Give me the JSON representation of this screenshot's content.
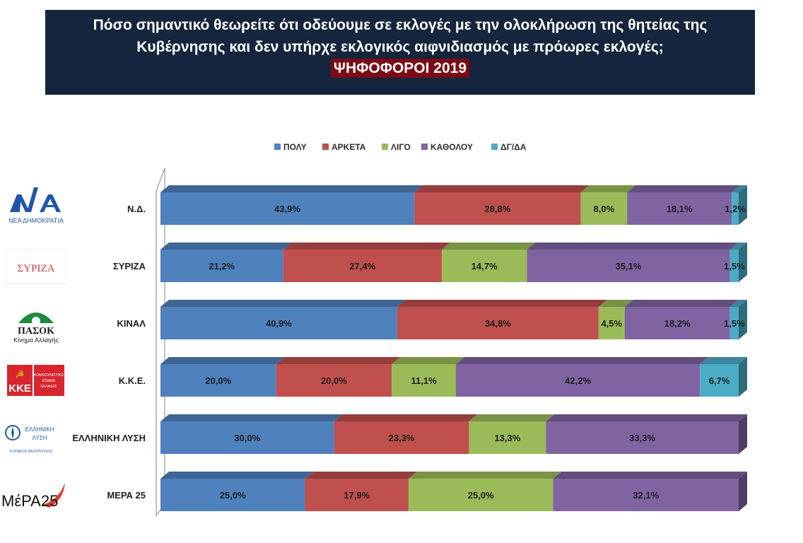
{
  "title": {
    "line1": "Πόσο σημαντικό θεωρείτε ότι οδεύουμε σε εκλογές με την ολοκλήρωση της θητείας της",
    "line2": "Κυβέρνησης και δεν υπήρχε εκλογικός αιφνιδιασμός με πρόωρες εκλογές;",
    "subtitle": "ΨΗΦΟΦΟΡΟΙ 2019"
  },
  "logos": [
    {
      "name": "nd-logo",
      "text": "ΝΕΑ ΔΗΜΟΚΡΑΤΙΑ"
    },
    {
      "name": "syriza-logo",
      "text": "ΣΥΡΙΖΑ"
    },
    {
      "name": "pasok-logo",
      "text": "ΠΑΣΟΚ",
      "subtext": "Κίνημα Αλλαγής"
    },
    {
      "name": "kke-logo",
      "text": "ΚΚΕ",
      "subtext": "ΚΟΜΜΟΥΝΙΣΤΙΚΟ ΚΟΜΜΑ ΕΛΛΑΔΑΣ"
    },
    {
      "name": "elliniki-lysi-logo",
      "text": "ΕΛΛΗΝΙΚΗ ΛΥΣΗ",
      "subtext": "ΚΥΡΙΑΚΟΣ ΒΕΛΟΠΟΥΛΟΣ"
    },
    {
      "name": "mera25-logo",
      "text": "ΜέΡΑ25"
    }
  ],
  "colors": {
    "title_bg": "#14253d",
    "subtitle_bg": "#7b0a14",
    "series": [
      "#4f81bd",
      "#c0504d",
      "#9bbb59",
      "#8064a2",
      "#4bacc6"
    ]
  },
  "chart_data": {
    "type": "bar",
    "orientation": "horizontal",
    "stacked": true,
    "percent_stacked": true,
    "legend_position": "top",
    "categories": [
      "Ν.Δ.",
      "ΣΥΡΙΖΑ",
      "ΚΙΝΑΛ",
      "Κ.Κ.Ε.",
      "ΕΛΛΗΝΙΚΗ ΛΥΣΗ",
      "ΜΕΡΑ 25"
    ],
    "series": [
      {
        "name": "ΠΟΛΥ",
        "values": [
          43.9,
          21.2,
          40.9,
          20.0,
          30.0,
          25.0
        ],
        "labels": [
          "43,9%",
          "21,2%",
          "40,9%",
          "20,0%",
          "30,0%",
          "25,0%"
        ]
      },
      {
        "name": "ΑΡΚΕΤΑ",
        "values": [
          28.8,
          27.4,
          34.8,
          20.0,
          23.3,
          17.9
        ],
        "labels": [
          "28,8%",
          "27,4%",
          "34,8%",
          "20,0%",
          "23,3%",
          "17,9%"
        ]
      },
      {
        "name": "ΛΙΓΟ",
        "values": [
          8.0,
          14.7,
          4.5,
          11.1,
          13.3,
          25.0
        ],
        "labels": [
          "8,0%",
          "14,7%",
          "4,5%",
          "11,1%",
          "13,3%",
          "25,0%"
        ]
      },
      {
        "name": "ΚΑΘΟΛΟΥ",
        "values": [
          18.1,
          35.1,
          18.2,
          42.2,
          33.3,
          32.1
        ],
        "labels": [
          "18,1%",
          "35,1%",
          "18,2%",
          "42,2%",
          "33,3%",
          "32,1%"
        ]
      },
      {
        "name": "ΔΓ/ΔΑ",
        "values": [
          1.2,
          1.5,
          1.5,
          6.7,
          0,
          0
        ],
        "labels": [
          "1,2%",
          "1,5%",
          "1,5%",
          "6,7%",
          "",
          ""
        ]
      }
    ]
  }
}
